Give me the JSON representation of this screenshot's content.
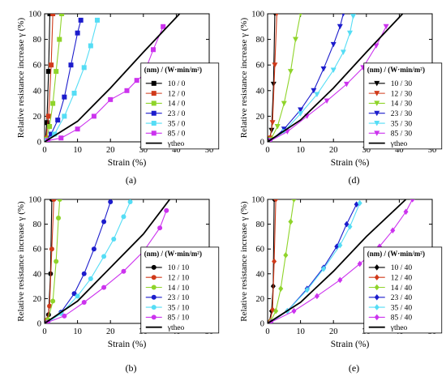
{
  "figure": {
    "panels_order_note": "",
    "common": {
      "xlabel": "Strain  (%)",
      "ylabel": "Relative resistance increase  γ (%)",
      "xlim": [
        0,
        50
      ],
      "ylim": [
        0,
        100
      ],
      "xticks": [
        "0",
        "10",
        "20",
        "30",
        "40",
        "50"
      ],
      "yticks": [
        "0",
        "20",
        "40",
        "60",
        "80",
        "100"
      ],
      "legend_header": "(nm) / (W·min/m²)",
      "theory_label": "γtheo"
    }
  },
  "chart_data": [
    {
      "type": "line",
      "panel_label": "(a)",
      "marker": "square",
      "title": "",
      "xlabel": "Strain  (%)",
      "ylabel": "Relative resistance increase  γ (%)",
      "xlim": [
        0,
        50
      ],
      "ylim": [
        0,
        100
      ],
      "grid": false,
      "legend_position": "center-right",
      "series": [
        {
          "name": "10 / 0",
          "color": "#000000",
          "x": [
            0.3,
            0.7,
            1.2,
            1.6
          ],
          "y": [
            2,
            15,
            55,
            100
          ]
        },
        {
          "name": "12 / 0",
          "color": "#d03a1a",
          "x": [
            0.5,
            1.2,
            2.0,
            2.5
          ],
          "y": [
            3,
            20,
            60,
            100
          ]
        },
        {
          "name": "14 / 0",
          "color": "#8fd42a",
          "x": [
            0.5,
            1.5,
            2.5,
            3.5,
            4.5,
            5.2
          ],
          "y": [
            2,
            12,
            30,
            55,
            80,
            100
          ]
        },
        {
          "name": "23 / 0",
          "color": "#1c1ccc",
          "x": [
            0.5,
            2,
            4,
            6,
            8,
            10,
            11
          ],
          "y": [
            1,
            6,
            17,
            35,
            60,
            85,
            95
          ]
        },
        {
          "name": "35 / 0",
          "color": "#55ddf5",
          "x": [
            0.5,
            3,
            6,
            9,
            12,
            14,
            16
          ],
          "y": [
            1,
            6,
            20,
            38,
            58,
            75,
            95
          ]
        },
        {
          "name": "85 / 0",
          "color": "#cc33ee",
          "x": [
            1,
            5,
            10,
            15,
            20,
            25,
            28,
            30,
            33,
            36
          ],
          "y": [
            1,
            3,
            10,
            20,
            33,
            40,
            48,
            52,
            72,
            90
          ]
        },
        {
          "name": "γtheo",
          "color": "#000000",
          "x": [
            0,
            10,
            20,
            30,
            41
          ],
          "y": [
            0,
            16,
            42,
            70,
            100
          ]
        }
      ]
    },
    {
      "type": "line",
      "panel_label": "(b)",
      "marker": "circle",
      "title": "",
      "xlabel": "Strain  (%)",
      "ylabel": "Relative resistance increase  γ (%)",
      "xlim": [
        0,
        50
      ],
      "ylim": [
        0,
        100
      ],
      "grid": false,
      "legend_position": "center-right",
      "series": [
        {
          "name": "10 / 10",
          "color": "#000000",
          "x": [
            0.5,
            1.2,
            1.8,
            2.2
          ],
          "y": [
            2,
            7,
            40,
            100
          ]
        },
        {
          "name": "12 / 10",
          "color": "#d03a1a",
          "x": [
            0.8,
            1.5,
            2.2,
            2.8
          ],
          "y": [
            3,
            14,
            60,
            100
          ]
        },
        {
          "name": "14 / 10",
          "color": "#8fd42a",
          "x": [
            1,
            2.5,
            3.5,
            4.2,
            4.6
          ],
          "y": [
            3,
            18,
            50,
            85,
            100
          ]
        },
        {
          "name": "23 / 10",
          "color": "#1c1ccc",
          "x": [
            1,
            5,
            9,
            12,
            15,
            18,
            20
          ],
          "y": [
            1,
            9,
            24,
            40,
            60,
            82,
            98
          ]
        },
        {
          "name": "35 / 10",
          "color": "#55ddf5",
          "x": [
            1,
            5,
            10,
            14,
            18,
            21,
            24,
            26
          ],
          "y": [
            1,
            8,
            22,
            36,
            54,
            68,
            86,
            98
          ]
        },
        {
          "name": "85 / 10",
          "color": "#cc33ee",
          "x": [
            1,
            6,
            12,
            18,
            24,
            30,
            35,
            37
          ],
          "y": [
            1,
            6,
            17,
            29,
            42,
            58,
            77,
            91
          ]
        },
        {
          "name": "γtheo",
          "color": "#000000",
          "x": [
            0,
            10,
            20,
            30,
            38
          ],
          "y": [
            0,
            18,
            45,
            72,
            100
          ]
        }
      ]
    },
    {
      "type": "line",
      "panel_label": "(d)",
      "marker": "triangle-down",
      "title": "",
      "xlabel": "Strain  (%)",
      "ylabel": "Relative resistance increase  γ (%)",
      "xlim": [
        0,
        50
      ],
      "ylim": [
        0,
        100
      ],
      "grid": false,
      "legend_position": "center-right",
      "series": [
        {
          "name": "10 / 30",
          "color": "#000000",
          "x": [
            0.5,
            1.2,
            1.8,
            2.2
          ],
          "y": [
            2,
            9,
            45,
            100
          ]
        },
        {
          "name": "12 / 30",
          "color": "#d03a1a",
          "x": [
            0.8,
            1.5,
            2.2,
            2.8
          ],
          "y": [
            3,
            15,
            60,
            100
          ]
        },
        {
          "name": "14 / 30",
          "color": "#8fd42a",
          "x": [
            1,
            3,
            5,
            7,
            8.5,
            10
          ],
          "y": [
            2,
            12,
            30,
            55,
            80,
            100
          ]
        },
        {
          "name": "23 / 30",
          "color": "#1c1ccc",
          "x": [
            1,
            5,
            10,
            14,
            17,
            20,
            22,
            23
          ],
          "y": [
            1,
            10,
            25,
            40,
            57,
            76,
            90,
            100
          ]
        },
        {
          "name": "35 / 30",
          "color": "#55ddf5",
          "x": [
            1,
            5,
            10,
            15,
            20,
            23,
            25,
            26
          ],
          "y": [
            1,
            8,
            22,
            37,
            56,
            70,
            85,
            98
          ]
        },
        {
          "name": "85 / 30",
          "color": "#cc33ee",
          "x": [
            1,
            6,
            12,
            18,
            24,
            29,
            33,
            36
          ],
          "y": [
            1,
            8,
            20,
            32,
            45,
            58,
            75,
            90
          ]
        },
        {
          "name": "γtheo",
          "color": "#000000",
          "x": [
            0,
            10,
            20,
            30,
            41
          ],
          "y": [
            0,
            17,
            42,
            70,
            100
          ]
        }
      ]
    },
    {
      "type": "line",
      "panel_label": "(e)",
      "marker": "diamond",
      "title": "",
      "xlabel": "Strain  (%)",
      "ylabel": "Relative resistance increase  γ (%)",
      "xlim": [
        0,
        50
      ],
      "ylim": [
        0,
        100
      ],
      "grid": false,
      "legend_position": "center-right",
      "series": [
        {
          "name": "10 / 40",
          "color": "#000000",
          "x": [
            0.5,
            1.2,
            1.7,
            2.0
          ],
          "y": [
            1,
            10,
            30,
            100
          ]
        },
        {
          "name": "12 / 40",
          "color": "#d03a1a",
          "x": [
            0.8,
            1.5,
            2.0,
            2.5
          ],
          "y": [
            2,
            11,
            50,
            100
          ]
        },
        {
          "name": "14 / 40",
          "color": "#8fd42a",
          "x": [
            1,
            2.5,
            4,
            5.5,
            7,
            8
          ],
          "y": [
            2,
            10,
            28,
            55,
            82,
            100
          ]
        },
        {
          "name": "23 / 40",
          "color": "#1c1ccc",
          "x": [
            1,
            6,
            12,
            17,
            21,
            24,
            27
          ],
          "y": [
            1,
            10,
            28,
            45,
            62,
            80,
            96
          ]
        },
        {
          "name": "35 / 40",
          "color": "#55ddf5",
          "x": [
            1,
            6,
            12,
            17,
            22,
            25,
            28
          ],
          "y": [
            1,
            10,
            27,
            44,
            63,
            78,
            97
          ]
        },
        {
          "name": "85 / 40",
          "color": "#cc33ee",
          "x": [
            1,
            8,
            15,
            22,
            28,
            34,
            38,
            42,
            44
          ],
          "y": [
            1,
            10,
            22,
            35,
            48,
            62,
            75,
            90,
            100
          ]
        },
        {
          "name": "γtheo",
          "color": "#000000",
          "x": [
            0,
            10,
            20,
            30,
            42
          ],
          "y": [
            0,
            17,
            42,
            70,
            100
          ]
        }
      ]
    }
  ]
}
